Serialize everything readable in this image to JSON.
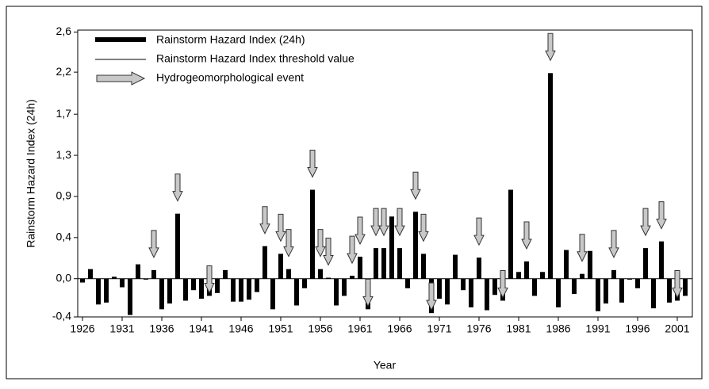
{
  "chart_data": {
    "type": "bar",
    "x_label": "Year",
    "y_label": "Rainstorm Hazard Index (24h)",
    "x": [
      1926,
      1927,
      1928,
      1929,
      1930,
      1931,
      1932,
      1933,
      1934,
      1935,
      1936,
      1937,
      1938,
      1939,
      1940,
      1941,
      1942,
      1943,
      1944,
      1945,
      1946,
      1947,
      1948,
      1949,
      1950,
      1951,
      1952,
      1953,
      1954,
      1955,
      1956,
      1957,
      1958,
      1959,
      1960,
      1961,
      1962,
      1963,
      1964,
      1965,
      1966,
      1967,
      1968,
      1969,
      1970,
      1971,
      1972,
      1973,
      1974,
      1975,
      1976,
      1977,
      1978,
      1979,
      1980,
      1981,
      1982,
      1983,
      1984,
      1985,
      1986,
      1987,
      1988,
      1989,
      1990,
      1991,
      1992,
      1993,
      1994,
      1995,
      1996,
      1997,
      1998,
      1999,
      2000,
      2001,
      2002
    ],
    "series": [
      {
        "name": "Rainstorm Hazard Index (24h)",
        "color": "#000000",
        "values": [
          -0.04,
          0.1,
          -0.27,
          -0.25,
          0.02,
          -0.09,
          -0.38,
          0.15,
          -0.01,
          0.09,
          -0.32,
          -0.26,
          0.68,
          -0.23,
          -0.12,
          -0.21,
          -0.18,
          -0.15,
          0.09,
          -0.24,
          -0.24,
          -0.22,
          -0.14,
          0.34,
          -0.32,
          0.26,
          0.1,
          -0.28,
          -0.1,
          0.93,
          0.1,
          0.01,
          -0.28,
          -0.18,
          0.03,
          0.23,
          -0.32,
          0.32,
          0.32,
          0.65,
          0.32,
          -0.1,
          0.7,
          0.26,
          -0.36,
          -0.21,
          -0.27,
          0.25,
          -0.12,
          -0.3,
          0.22,
          -0.33,
          -0.17,
          -0.23,
          0.93,
          0.07,
          0.18,
          -0.18,
          0.07,
          2.15,
          -0.3,
          0.3,
          -0.16,
          0.05,
          0.29,
          -0.34,
          -0.26,
          0.09,
          -0.25,
          -0.01,
          -0.1,
          0.32,
          -0.31,
          0.39,
          -0.25,
          -0.23,
          -0.18
        ]
      }
    ],
    "threshold": {
      "name": "Rainstorm Hazard Index threshold value",
      "value": 0,
      "color": "#000000"
    },
    "events": {
      "name": "Hydrogeomorphological event",
      "color": "#c8c8c8",
      "x": [
        1935,
        1938,
        1942,
        1949,
        1951,
        1952,
        1955,
        1956,
        1957,
        1960,
        1961,
        1962,
        1963,
        1964,
        1966,
        1968,
        1969,
        1970,
        1976,
        1979,
        1982,
        1985,
        1989,
        1993,
        1997,
        1999,
        2001
      ]
    },
    "xlim": [
      1925.4,
      2002.9
    ],
    "xticks": [
      1926,
      1931,
      1936,
      1941,
      1946,
      1951,
      1956,
      1961,
      1966,
      1971,
      1976,
      1981,
      1986,
      1991,
      1996,
      2001
    ],
    "ylim": [
      -0.4,
      2.6
    ],
    "yticks": [
      {
        "value": -0.4,
        "label": "-0,4"
      },
      {
        "value": 0,
        "label": "0,0"
      },
      {
        "value": 0.43,
        "label": "0,4"
      },
      {
        "value": 0.86,
        "label": "0,9"
      },
      {
        "value": 1.29,
        "label": "1,3"
      },
      {
        "value": 1.72,
        "label": "1,7"
      },
      {
        "value": 2.16,
        "label": "2,2"
      },
      {
        "value": 2.58,
        "label": "2,6"
      }
    ]
  }
}
